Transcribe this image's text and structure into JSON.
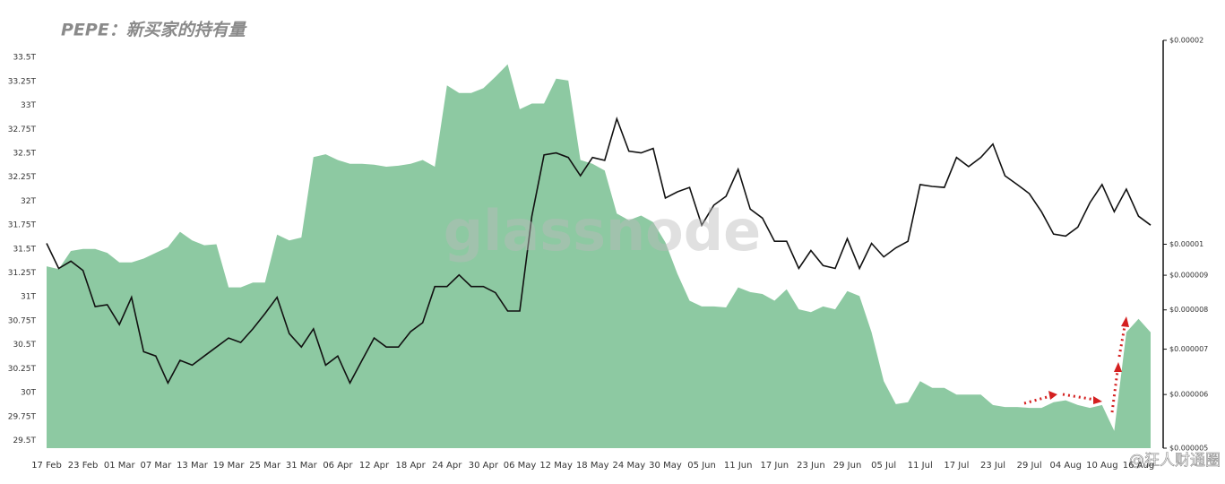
{
  "chart_data": {
    "type": "combo",
    "title": "PEPE：新买家的持有量",
    "watermark": "glassnode",
    "source_mark": "@狂人财通圈",
    "categories": [
      "17 Feb",
      null,
      null,
      "23 Feb",
      null,
      null,
      "01 Mar",
      null,
      null,
      "07 Mar",
      null,
      null,
      "13 Mar",
      null,
      null,
      "19 Mar",
      null,
      null,
      "25 Mar",
      null,
      null,
      "31 Mar",
      null,
      null,
      "06 Apr",
      null,
      null,
      "12 Apr",
      null,
      null,
      "18 Apr",
      null,
      null,
      "24 Apr",
      null,
      null,
      "30 Apr",
      null,
      null,
      "06 May",
      null,
      null,
      "12 May",
      null,
      null,
      "18 May",
      null,
      null,
      "24 May",
      null,
      null,
      "30 May",
      null,
      null,
      "05 Jun",
      null,
      null,
      "11 Jun",
      null,
      null,
      "17 Jun",
      null,
      null,
      "23 Jun",
      null,
      null,
      "29 Jun",
      null,
      null,
      "05 Jul",
      null,
      null,
      "11 Jul",
      null,
      null,
      "17 Jul",
      null,
      null,
      "23 Jul",
      null,
      null,
      "29 Jul",
      null,
      null,
      "04 Aug",
      null,
      null,
      "10 Aug",
      null,
      null,
      "16 Aug",
      null
    ],
    "series": [
      {
        "type": "area",
        "color": "#8dc9a2",
        "values": [
          31.32,
          31.29,
          31.48,
          31.5,
          31.5,
          31.46,
          31.36,
          31.36,
          31.4,
          31.46,
          31.52,
          31.68,
          31.59,
          31.54,
          31.55,
          31.1,
          31.1,
          31.15,
          31.15,
          31.65,
          31.59,
          31.62,
          32.46,
          32.49,
          32.43,
          32.39,
          32.39,
          32.38,
          32.36,
          32.37,
          32.39,
          32.43,
          32.36,
          33.21,
          33.13,
          33.13,
          33.18,
          33.3,
          33.43,
          32.96,
          33.02,
          33.02,
          33.28,
          33.26,
          32.43,
          32.39,
          32.32,
          31.87,
          31.8,
          31.85,
          31.78,
          31.57,
          31.24,
          30.96,
          30.9,
          30.9,
          30.89,
          31.1,
          31.05,
          31.03,
          30.96,
          31.08,
          30.87,
          30.84,
          30.9,
          30.87,
          31.06,
          31.01,
          30.63,
          30.12,
          29.88,
          29.9,
          30.12,
          30.05,
          30.05,
          29.98,
          29.98,
          29.98,
          29.87,
          29.85,
          29.85,
          29.84,
          29.84,
          29.9,
          29.92,
          29.87,
          29.84,
          29.87,
          29.6,
          30.63,
          30.77,
          30.63
        ]
      },
      {
        "type": "line",
        "axis": "y2",
        "color": "#111111",
        "values": [
          1.003e-05,
          9.21e-06,
          9.44e-06,
          9.15e-06,
          8.09e-06,
          8.14e-06,
          7.61e-06,
          8.35e-06,
          6.94e-06,
          6.84e-06,
          6.24e-06,
          6.74e-06,
          6.63e-06,
          6.84e-06,
          7.05e-06,
          7.27e-06,
          7.16e-06,
          7.5e-06,
          7.9e-06,
          8.35e-06,
          7.38e-06,
          7.05e-06,
          7.5e-06,
          6.63e-06,
          6.84e-06,
          6.24e-06,
          6.74e-06,
          7.27e-06,
          7.05e-06,
          7.05e-06,
          7.43e-06,
          7.66e-06,
          8.66e-06,
          8.66e-06,
          9.01e-06,
          8.66e-06,
          8.66e-06,
          8.48e-06,
          7.97e-06,
          7.97e-06,
          1.1e-05,
          1.355e-05,
          1.364e-05,
          1.343e-05,
          1.262e-05,
          1.343e-05,
          1.33e-05,
          1.532e-05,
          1.372e-05,
          1.364e-05,
          1.385e-05,
          1.17e-05,
          1.195e-05,
          1.213e-05,
          1.067e-05,
          1.142e-05,
          1.177e-05,
          1.29e-05,
          1.127e-05,
          1.093e-05,
          1.01e-05,
          1.01e-05,
          9.21e-06,
          9.79e-06,
          9.3e-06,
          9.21e-06,
          1.019e-05,
          9.21e-06,
          1.003e-05,
          9.58e-06,
          9.88e-06,
          1.01e-05,
          1.225e-05,
          1.217e-05,
          1.213e-05,
          1.343e-05,
          1.302e-05,
          1.343e-05,
          1.406e-05,
          1.262e-05,
          1.225e-05,
          1.188e-05,
          1.117e-05,
          1.035e-05,
          1.028e-05,
          1.06e-05,
          1.152e-05,
          1.225e-05,
          1.117e-05,
          1.206e-05,
          1.1e-05,
          1.067e-05
        ]
      }
    ],
    "ylim": [
      29.42,
      33.68
    ],
    "yticks": [
      {
        "value": 29.5,
        "label": "29.5T"
      },
      {
        "value": 29.75,
        "label": "29.75T"
      },
      {
        "value": 30,
        "label": "30T"
      },
      {
        "value": 30.25,
        "label": "30.25T"
      },
      {
        "value": 30.5,
        "label": "30.5T"
      },
      {
        "value": 30.75,
        "label": "30.75T"
      },
      {
        "value": 31,
        "label": "31T"
      },
      {
        "value": 31.25,
        "label": "31.25T"
      },
      {
        "value": 31.5,
        "label": "31.5T"
      },
      {
        "value": 31.75,
        "label": "31.75T"
      },
      {
        "value": 32,
        "label": "32T"
      },
      {
        "value": 32.25,
        "label": "32.25T"
      },
      {
        "value": 32.5,
        "label": "32.5T"
      },
      {
        "value": 32.75,
        "label": "32.75T"
      },
      {
        "value": 33,
        "label": "33T"
      },
      {
        "value": 33.25,
        "label": "33.25T"
      },
      {
        "value": 33.5,
        "label": "33.5T"
      }
    ],
    "y2lim": [
      5e-06,
      2e-05
    ],
    "y2_log": true,
    "y2ticks": [
      {
        "value": 2e-05,
        "label": "$0.00002"
      },
      {
        "value": 1e-05,
        "label": "$0.00001"
      },
      {
        "value": 9e-06,
        "label": "$0.000009"
      },
      {
        "value": 8e-06,
        "label": "$0.000008"
      },
      {
        "value": 7e-06,
        "label": "$0.000007"
      },
      {
        "value": 6e-06,
        "label": "$0.000006"
      },
      {
        "value": 5e-06,
        "label": "$0.000005"
      }
    ]
  }
}
